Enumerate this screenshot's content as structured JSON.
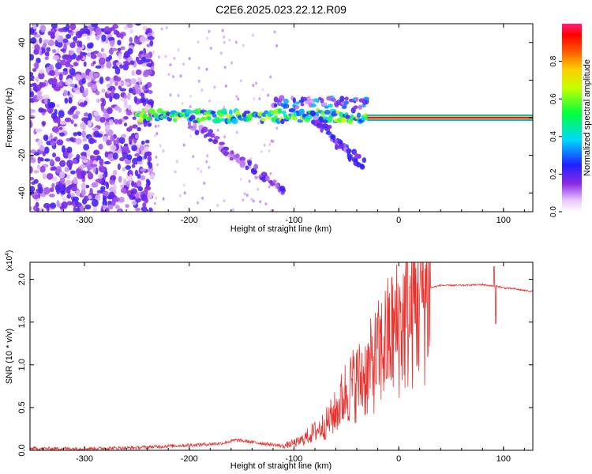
{
  "title": "C2E6.2025.023.22.12.R09",
  "colors": {
    "background": "#ffffff",
    "axis": "#000000",
    "snr_line": "#e8322e"
  },
  "chart_data": [
    {
      "type": "heatmap",
      "name": "spectrogram",
      "xlabel": "Height of straight line (km)",
      "ylabel": "Frequency (Hz)",
      "xlim": [
        -352,
        128
      ],
      "ylim": [
        -50,
        50
      ],
      "xticks": [
        -300,
        -200,
        -100,
        0,
        100
      ],
      "xtick_labels": [
        "-300",
        "-200",
        "-100",
        "0",
        "100"
      ],
      "yticks": [
        -40,
        -20,
        0,
        20,
        40
      ],
      "ytick_labels": [
        "-40",
        "-20",
        "0",
        "20",
        "40"
      ],
      "colorbar": {
        "label": "Normalized spectral amplitude",
        "range": [
          0,
          1
        ],
        "ticks": [
          0.0,
          0.2,
          0.4,
          0.6,
          0.8
        ],
        "tick_labels": [
          "0.0",
          "0.2",
          "0.4",
          "0.6",
          "0.8"
        ],
        "colormap": "rainbow (white/violet → blue → cyan → green → yellow → red)"
      },
      "features": [
        {
          "kind": "noise",
          "x_range": [
            -352,
            -235
          ],
          "y_range": [
            -50,
            50
          ],
          "amplitude": 0.15
        },
        {
          "kind": "doppler_line",
          "x_range": [
            -250,
            -30
          ],
          "y_center": 1,
          "spread": 4,
          "amplitude": 0.5
        },
        {
          "kind": "strong_line",
          "x_range": [
            -30,
            128
          ],
          "y_center": 0,
          "amplitude": 0.95
        },
        {
          "kind": "descending_branch",
          "x_from": -200,
          "y_from": -2,
          "x_to": -110,
          "y_to": -40,
          "amplitude": 0.15
        },
        {
          "kind": "ascending_branch",
          "x_from": -120,
          "y_from": 8,
          "x_to": -30,
          "y_to": 8,
          "amplitude": 0.3
        },
        {
          "kind": "descending_branch",
          "x_from": -80,
          "y_from": 0,
          "x_to": -35,
          "y_to": -25,
          "amplitude": 0.2
        }
      ]
    },
    {
      "type": "line",
      "name": "snr",
      "xlabel": "Height of straight line (km)",
      "ylabel": "SNR (10 * v/v)",
      "scale_label": "(x10",
      "scale_exp": "4",
      "scale_close": ")",
      "xlim": [
        -352,
        128
      ],
      "ylim": [
        0,
        2.2
      ],
      "xticks": [
        -300,
        -200,
        -100,
        0,
        100
      ],
      "xtick_labels": [
        "-300",
        "-200",
        "-100",
        "0",
        "100"
      ],
      "yticks": [
        0.0,
        0.5,
        1.0,
        1.5,
        2.0
      ],
      "ytick_labels": [
        "0.0",
        "0.5",
        "1.0",
        "1.5",
        "2.0"
      ],
      "series": [
        {
          "color": "#e8322e",
          "x": [
            -352,
            -300,
            -250,
            -220,
            -200,
            -170,
            -155,
            -130,
            -110,
            -95,
            -85,
            -70,
            -60,
            -50,
            -40,
            -30,
            -20,
            -10,
            0,
            10,
            20,
            30,
            40,
            60,
            80,
            90,
            95,
            100,
            110,
            120,
            128
          ],
          "y": [
            0.02,
            0.02,
            0.03,
            0.05,
            0.06,
            0.08,
            0.12,
            0.08,
            0.05,
            0.1,
            0.18,
            0.3,
            0.45,
            0.7,
            0.8,
            0.9,
            1.1,
            1.3,
            1.45,
            1.6,
            1.8,
            1.9,
            1.93,
            1.93,
            1.94,
            1.92,
            1.92,
            1.9,
            1.89,
            1.87,
            1.86
          ]
        }
      ]
    }
  ]
}
